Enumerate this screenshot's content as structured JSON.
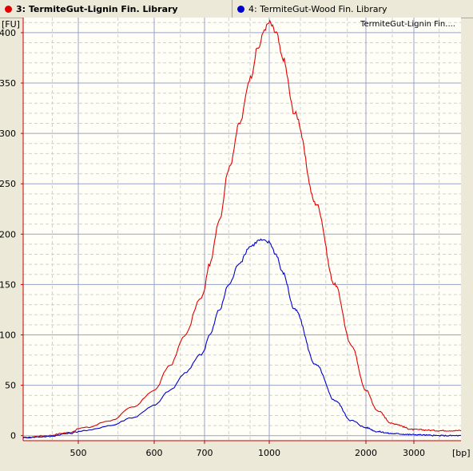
{
  "tabs": [
    {
      "label": "3: TermiteGut-Lignin Fin. Library",
      "color": "#e00000",
      "active": true
    },
    {
      "label": "4: TermiteGut-Wood Fin. Library",
      "color": "#0000cc",
      "active": false
    }
  ],
  "chart_data": {
    "type": "line",
    "legend_text": "TermiteGut-Lignin Fin....",
    "ylabel": "[FU]",
    "xlabel": "[bp]",
    "grid": true,
    "ylim": [
      -5,
      415
    ],
    "y_ticks": [
      0,
      50,
      100,
      150,
      200,
      250,
      300,
      350,
      400
    ],
    "x_ticks": [
      {
        "label": "500",
        "bp": 500
      },
      {
        "label": "600",
        "bp": 600
      },
      {
        "label": "700",
        "bp": 700
      },
      {
        "label": "1000",
        "bp": 1000
      },
      {
        "label": "2000",
        "bp": 2000
      },
      {
        "label": "3000",
        "bp": 3000
      }
    ],
    "series": [
      {
        "name": "3: TermiteGut-Lignin Fin. Library",
        "color": "#e00000",
        "bp": [
          400,
          440,
          480,
          510,
          540,
          570,
          600,
          630,
          660,
          690,
          720,
          760,
          800,
          850,
          900,
          940,
          980,
          1000,
          1050,
          1100,
          1200,
          1400,
          1600,
          1800,
          2000,
          2200,
          2500,
          3000,
          3500,
          4000
        ],
        "fu": [
          -2,
          0,
          3,
          8,
          15,
          28,
          45,
          70,
          100,
          135,
          170,
          215,
          265,
          310,
          355,
          385,
          405,
          410,
          400,
          375,
          320,
          230,
          150,
          90,
          45,
          25,
          12,
          6,
          5,
          5
        ]
      },
      {
        "name": "4: TermiteGut-Wood Fin. Library",
        "color": "#0000cc",
        "bp": [
          400,
          440,
          480,
          510,
          540,
          570,
          600,
          630,
          660,
          690,
          720,
          760,
          800,
          850,
          900,
          950,
          1000,
          1050,
          1100,
          1200,
          1400,
          1600,
          1800,
          2000,
          2200,
          2500,
          3000,
          3500,
          4000
        ],
        "fu": [
          -2,
          -1,
          2,
          5,
          10,
          18,
          30,
          45,
          62,
          80,
          100,
          125,
          150,
          172,
          188,
          194,
          192,
          180,
          162,
          125,
          70,
          35,
          15,
          8,
          4,
          2,
          1,
          0,
          0
        ]
      }
    ]
  }
}
